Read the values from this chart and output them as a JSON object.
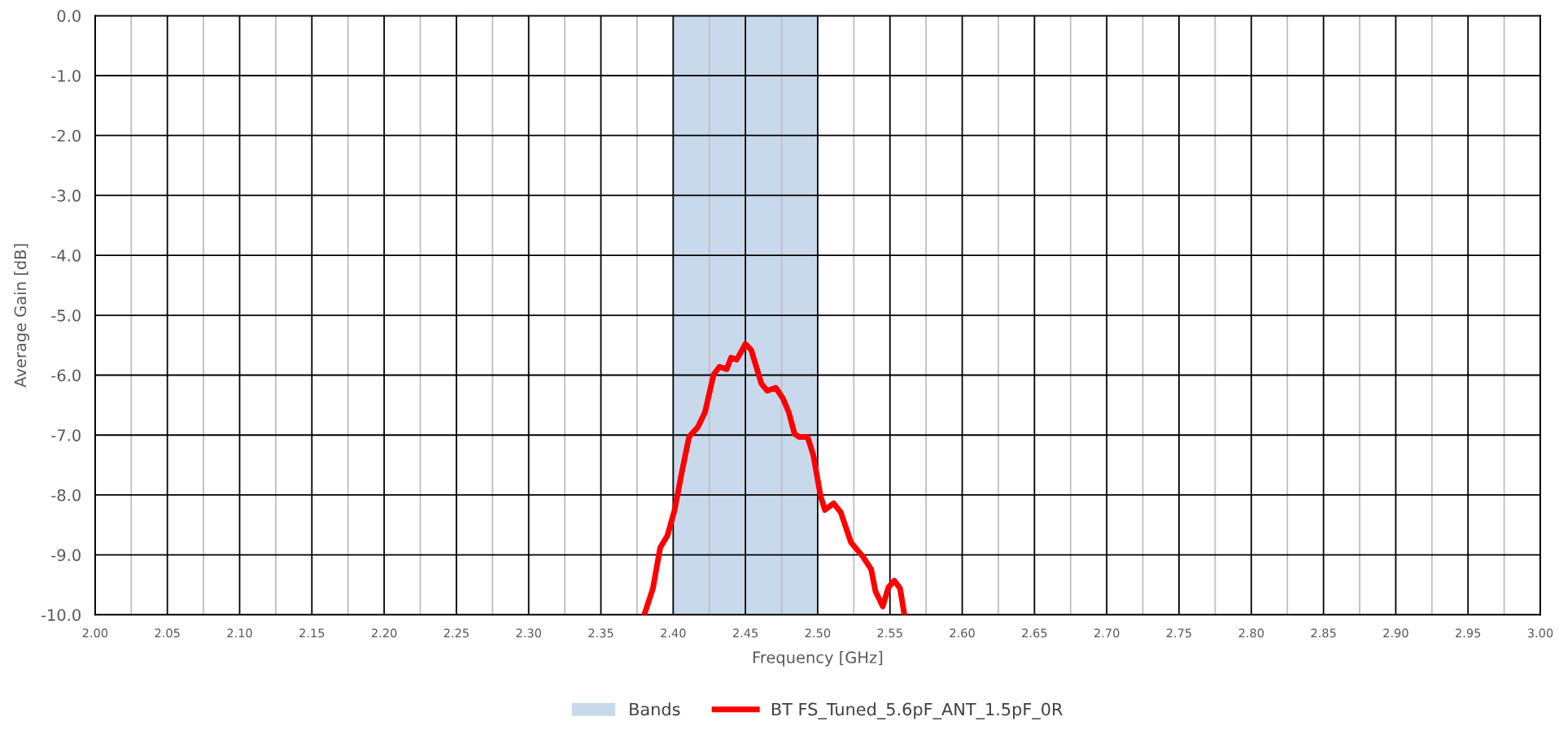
{
  "chart_data": {
    "type": "line",
    "xlabel": "Frequency [GHz]",
    "ylabel": "Average Gain [dB]",
    "xlim": [
      2.0,
      3.0
    ],
    "ylim": [
      -10.0,
      0.0
    ],
    "xticks": [
      {
        "value": 2.0,
        "label": "2.00"
      },
      {
        "value": 2.025,
        "label": null
      },
      {
        "value": 2.05,
        "label": "2.05"
      },
      {
        "value": 2.075,
        "label": null
      },
      {
        "value": 2.1,
        "label": "2.10"
      },
      {
        "value": 2.125,
        "label": null
      },
      {
        "value": 2.15,
        "label": "2.15"
      },
      {
        "value": 2.175,
        "label": null
      },
      {
        "value": 2.2,
        "label": "2.20"
      },
      {
        "value": 2.225,
        "label": null
      },
      {
        "value": 2.25,
        "label": "2.25"
      },
      {
        "value": 2.275,
        "label": null
      },
      {
        "value": 2.3,
        "label": "2.30"
      },
      {
        "value": 2.325,
        "label": null
      },
      {
        "value": 2.35,
        "label": "2.35"
      },
      {
        "value": 2.375,
        "label": null
      },
      {
        "value": 2.4,
        "label": "2.40"
      },
      {
        "value": 2.425,
        "label": null
      },
      {
        "value": 2.45,
        "label": "2.45"
      },
      {
        "value": 2.475,
        "label": null
      },
      {
        "value": 2.5,
        "label": "2.50"
      },
      {
        "value": 2.525,
        "label": null
      },
      {
        "value": 2.55,
        "label": "2.55"
      },
      {
        "value": 2.575,
        "label": null
      },
      {
        "value": 2.6,
        "label": "2.60"
      },
      {
        "value": 2.625,
        "label": null
      },
      {
        "value": 2.65,
        "label": "2.65"
      },
      {
        "value": 2.675,
        "label": null
      },
      {
        "value": 2.7,
        "label": "2.70"
      },
      {
        "value": 2.725,
        "label": null
      },
      {
        "value": 2.75,
        "label": "2.75"
      },
      {
        "value": 2.775,
        "label": null
      },
      {
        "value": 2.8,
        "label": "2.80"
      },
      {
        "value": 2.825,
        "label": null
      },
      {
        "value": 2.85,
        "label": "2.85"
      },
      {
        "value": 2.875,
        "label": null
      },
      {
        "value": 2.9,
        "label": "2.90"
      },
      {
        "value": 2.925,
        "label": null
      },
      {
        "value": 2.95,
        "label": "2.95"
      },
      {
        "value": 2.975,
        "label": null
      },
      {
        "value": 3.0,
        "label": "3.00"
      }
    ],
    "yticks": [
      {
        "value": 0,
        "label": "0.0"
      },
      {
        "value": -1,
        "label": "-1.0"
      },
      {
        "value": -2,
        "label": "-2.0"
      },
      {
        "value": -3,
        "label": "-3.0"
      },
      {
        "value": -4,
        "label": "-4.0"
      },
      {
        "value": -5,
        "label": "-5.0"
      },
      {
        "value": -6,
        "label": "-6.0"
      },
      {
        "value": -7,
        "label": "-7.0"
      },
      {
        "value": -8,
        "label": "-8.0"
      },
      {
        "value": -9,
        "label": "-9.0"
      },
      {
        "value": -10,
        "label": "-10.0"
      }
    ],
    "grid": true,
    "legend": "bottom",
    "marker": "none",
    "line_style": "solid",
    "bands": [
      {
        "axis": "x",
        "from": 2.4,
        "to": 2.5,
        "label": "Bands",
        "color": "#c9d9ec"
      }
    ],
    "series": [
      {
        "name": "BT FS_Tuned_5.6pF_ANT_1.5pF_0R",
        "color": "#ff0000",
        "x": [
          2.38,
          2.386,
          2.391,
          2.396,
          2.401,
          2.406,
          2.411,
          2.417,
          2.422,
          2.428,
          2.432,
          2.437,
          2.44,
          2.444,
          2.45,
          2.454,
          2.461,
          2.465,
          2.471,
          2.476,
          2.48,
          2.484,
          2.487,
          2.493,
          2.497,
          2.502,
          2.505,
          2.511,
          2.516,
          2.523,
          2.531,
          2.537,
          2.54,
          2.545,
          2.549,
          2.553,
          2.557,
          2.56
        ],
        "values": [
          -10.0,
          -9.56,
          -8.88,
          -8.68,
          -8.25,
          -7.62,
          -7.03,
          -6.87,
          -6.62,
          -5.99,
          -5.86,
          -5.9,
          -5.71,
          -5.74,
          -5.48,
          -5.58,
          -6.14,
          -6.26,
          -6.21,
          -6.39,
          -6.62,
          -6.98,
          -7.03,
          -7.03,
          -7.34,
          -8.02,
          -8.25,
          -8.14,
          -8.29,
          -8.79,
          -9.02,
          -9.24,
          -9.61,
          -9.86,
          -9.54,
          -9.43,
          -9.56,
          -10.0
        ]
      }
    ]
  }
}
